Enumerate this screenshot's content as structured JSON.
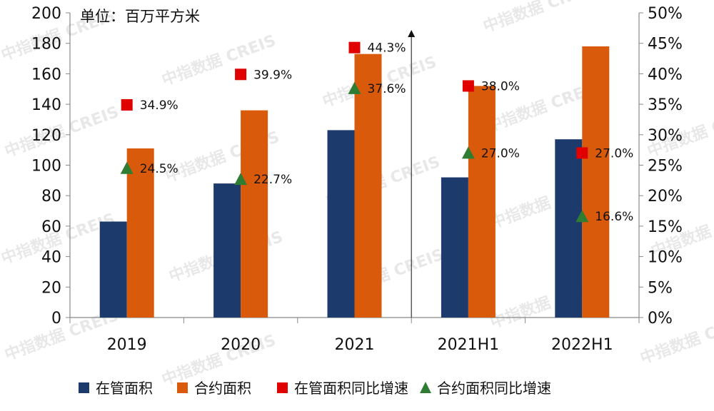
{
  "chart_data": {
    "type": "bar",
    "unit_label": "单位：百万平方米",
    "watermark": "中指数据 CREIS",
    "categories": [
      "2019",
      "2020",
      "2021",
      "2021H1",
      "2022H1"
    ],
    "y_left": {
      "range": [
        0,
        200
      ],
      "ticks": [
        "0",
        "20",
        "40",
        "60",
        "80",
        "100",
        "120",
        "140",
        "160",
        "180",
        "200"
      ]
    },
    "y_right": {
      "range": [
        0,
        50
      ],
      "ticks": [
        "0%",
        "5%",
        "10%",
        "15%",
        "20%",
        "25%",
        "30%",
        "35%",
        "40%",
        "45%",
        "50%"
      ]
    },
    "series": [
      {
        "name": "在管面积",
        "kind": "bar",
        "axis": "left",
        "color": "#1c3a6b",
        "values": [
          63,
          88,
          123,
          92,
          117
        ]
      },
      {
        "name": "合约面积",
        "kind": "bar",
        "axis": "left",
        "color": "#d95a0a",
        "values": [
          111,
          136,
          173,
          152,
          178
        ]
      },
      {
        "name": "在管面积同比增速",
        "kind": "marker-square",
        "axis": "right",
        "color": "#e00000",
        "values": [
          34.9,
          39.9,
          44.3,
          38.0,
          27.0
        ],
        "labels": [
          "34.9%",
          "39.9%",
          "44.3%",
          "38.0%",
          "27.0%"
        ]
      },
      {
        "name": "合约面积同比增速",
        "kind": "marker-triangle",
        "axis": "right",
        "color": "#2e7d32",
        "values": [
          24.5,
          22.7,
          37.6,
          27.0,
          16.6
        ],
        "labels": [
          "24.5%",
          "22.7%",
          "37.6%",
          "27.0%",
          "16.6%"
        ]
      }
    ]
  }
}
